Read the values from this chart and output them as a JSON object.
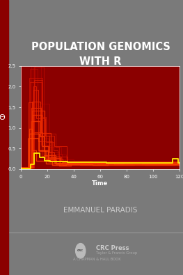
{
  "title_line1": "POPULATION GENOMICS",
  "title_line2": "WITH R",
  "author": "EMMANUEL PARADIS",
  "publisher_line1": "CRC Press",
  "publisher_line2": "Taylor & Francis Group",
  "publisher_line3": "A CHAPMAN & HALL BOOK",
  "bg_color": "#7a7a7a",
  "red_bar_color": "#8b0000",
  "plot_bg_color": "#8b0000",
  "title_color": "#ffffff",
  "author_color": "#cccccc",
  "ylabel": "Θ",
  "xlabel": "Time",
  "xlim": [
    0,
    120
  ],
  "ylim": [
    0,
    2.5
  ],
  "xticks": [
    0,
    20,
    40,
    60,
    80,
    100,
    120
  ],
  "yticks": [
    0.0,
    0.5,
    1.0,
    1.5,
    2.0,
    2.5
  ],
  "line_color_bright": "#ffee00",
  "line_color_dim": "#cc6600"
}
